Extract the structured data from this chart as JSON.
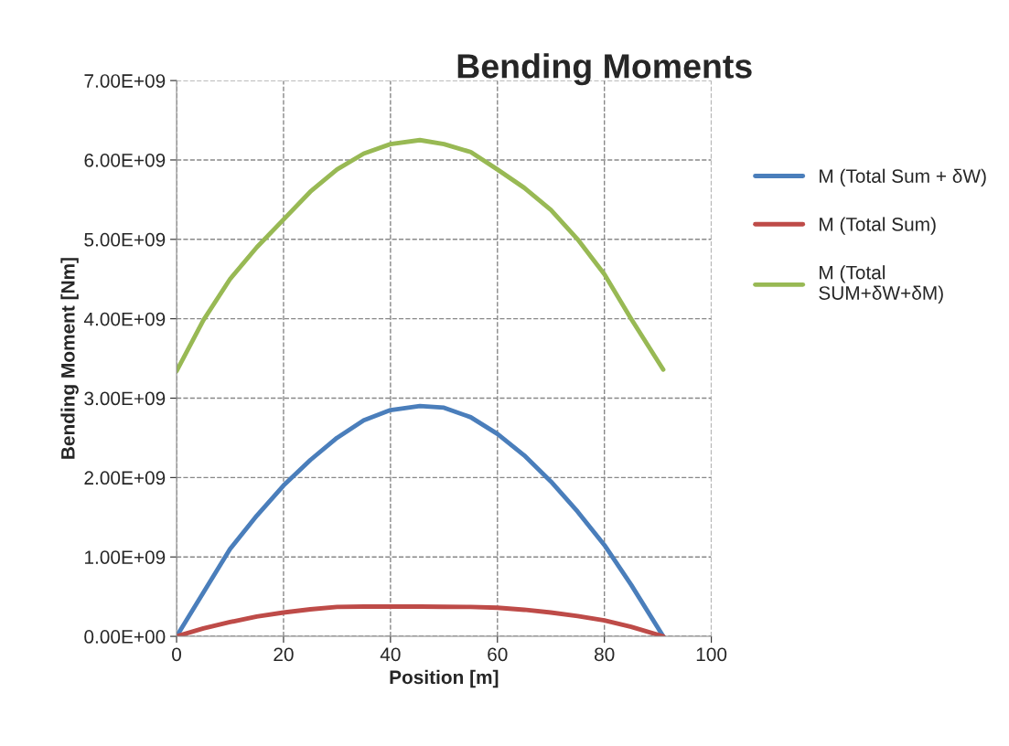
{
  "chart_data": {
    "type": "line",
    "title": "Bending Moments",
    "xlabel": "Position [m]",
    "ylabel": "Bending Moment [Nm]",
    "x": [
      0,
      5,
      10,
      15,
      20,
      25,
      30,
      35,
      40,
      45.5,
      50,
      55,
      60,
      65,
      70,
      75,
      80,
      85,
      91
    ],
    "series": [
      {
        "name": "M (Total Sum + δW)",
        "color": "#4a7ebb",
        "values": [
          0,
          550000000.0,
          1100000000.0,
          1520000000.0,
          1900000000.0,
          2220000000.0,
          2500000000.0,
          2720000000.0,
          2850000000.0,
          2900000000.0,
          2880000000.0,
          2760000000.0,
          2550000000.0,
          2280000000.0,
          1950000000.0,
          1570000000.0,
          1150000000.0,
          650000000.0,
          0
        ]
      },
      {
        "name": "M (Total Sum)",
        "color": "#be4b48",
        "values": [
          0,
          100000000.0,
          180000000.0,
          250000000.0,
          300000000.0,
          340000000.0,
          370000000.0,
          375000000.0,
          375000000.0,
          375000000.0,
          372000000.0,
          370000000.0,
          360000000.0,
          335000000.0,
          300000000.0,
          255000000.0,
          200000000.0,
          120000000.0,
          0
        ]
      },
      {
        "name": "M (Total\nSUM+δW+δM)",
        "color": "#98b954",
        "values": [
          3340000000.0,
          3980000000.0,
          4500000000.0,
          4900000000.0,
          5250000000.0,
          5600000000.0,
          5880000000.0,
          6080000000.0,
          6200000000.0,
          6250000000.0,
          6200000000.0,
          6100000000.0,
          5880000000.0,
          5650000000.0,
          5370000000.0,
          5000000000.0,
          4560000000.0,
          4000000000.0,
          3360000000.0
        ]
      }
    ],
    "xlim": [
      0,
      100
    ],
    "xticks": [
      0,
      20,
      40,
      60,
      80,
      100
    ],
    "ylim": [
      0,
      7000000000.0
    ],
    "yticks": [
      {
        "value": 0,
        "label": "0.00E+00"
      },
      {
        "value": 1000000000.0,
        "label": "1.00E+09"
      },
      {
        "value": 2000000000.0,
        "label": "2.00E+09"
      },
      {
        "value": 3000000000.0,
        "label": "3.00E+09"
      },
      {
        "value": 4000000000.0,
        "label": "4.00E+09"
      },
      {
        "value": 5000000000.0,
        "label": "5.00E+09"
      },
      {
        "value": 6000000000.0,
        "label": "6.00E+09"
      },
      {
        "value": 7000000000.0,
        "label": "7.00E+09"
      }
    ],
    "grid": true,
    "legend": "right",
    "marker": "none",
    "line_style": "solid"
  }
}
